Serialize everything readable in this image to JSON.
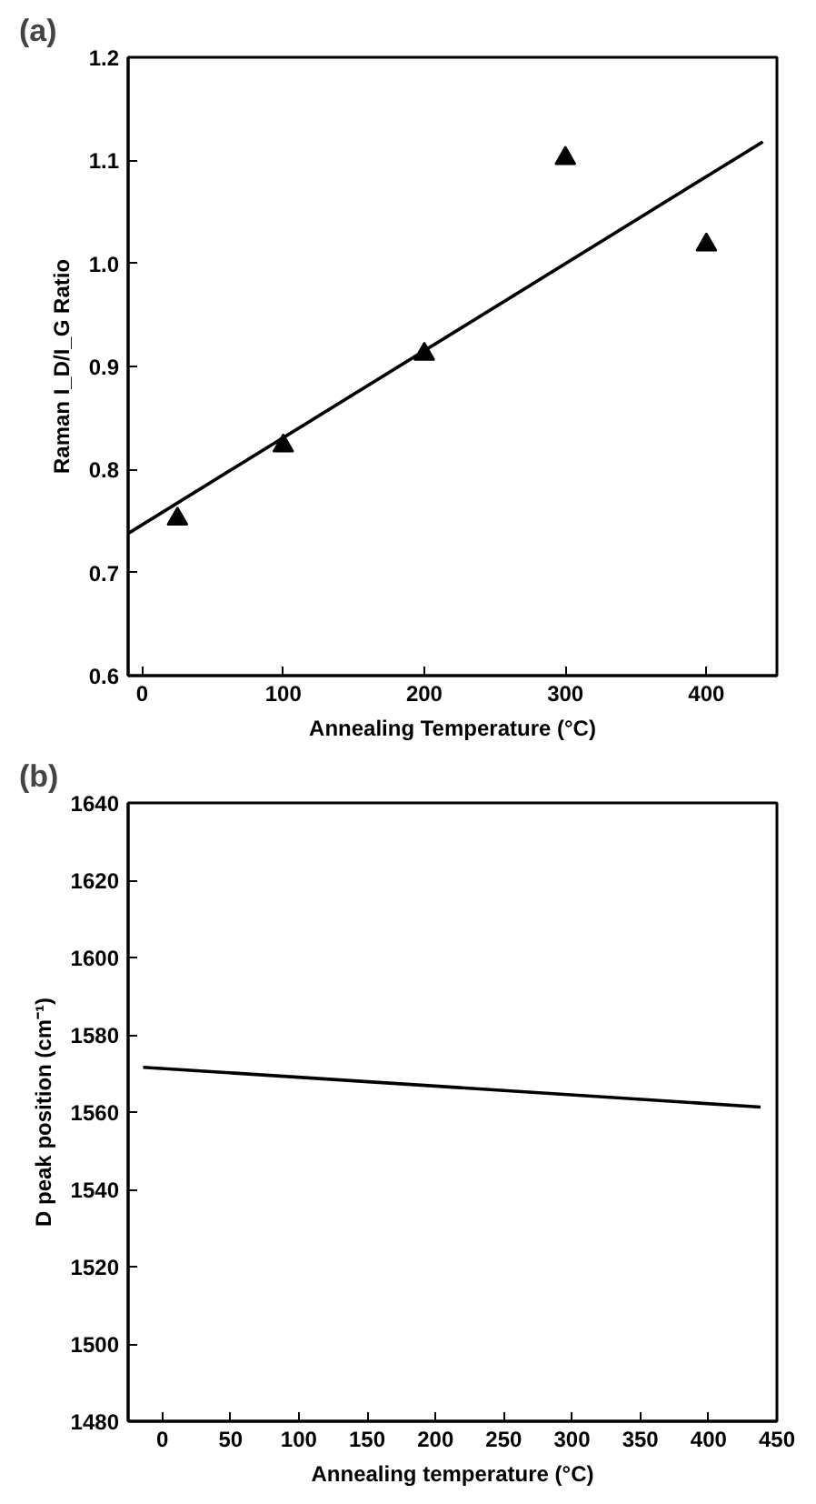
{
  "chart_data": [
    {
      "type": "scatter",
      "title": "(a)",
      "xlabel": "Annealing Temperature (°C)",
      "ylabel": "Raman I_D/I_G Ratio",
      "xlim": [
        -10,
        450
      ],
      "xticks": [
        0,
        100,
        200,
        300,
        400
      ],
      "ylim": [
        0.6,
        1.2
      ],
      "yticks": [
        0.6,
        0.7,
        0.8,
        0.9,
        {
          "value": 1.0,
          "label": "1.0"
        },
        1.1,
        1.2
      ],
      "grid": false,
      "series": [
        {
          "type": "scatter",
          "marker": "triangle",
          "color": "#000000",
          "x": [
            25,
            100,
            200,
            300,
            400
          ],
          "values": [
            0.752,
            0.823,
            0.912,
            1.102,
            1.018
          ]
        },
        {
          "type": "line",
          "marker": "none",
          "color": "#000000",
          "x": [
            -10,
            440
          ],
          "values": [
            0.738,
            1.118
          ]
        }
      ]
    },
    {
      "type": "line",
      "title": "(b)",
      "xlabel": "Annealing temperature (°C)",
      "ylabel": "D peak position (cm⁻¹)",
      "xlim": [
        -25,
        450
      ],
      "xticks": [
        0,
        50,
        100,
        150,
        200,
        250,
        300,
        350,
        400,
        450
      ],
      "ylim": [
        1480,
        1640
      ],
      "yticks": [
        1480,
        1500,
        1520,
        1540,
        1560,
        1580,
        1600,
        1620,
        1640
      ],
      "grid": false,
      "marker": "none",
      "line_style": "solid",
      "series": [
        {
          "color": "#000000",
          "x": [
            -14,
            438
          ],
          "values": [
            1571.6,
            1561.3
          ]
        }
      ]
    }
  ]
}
